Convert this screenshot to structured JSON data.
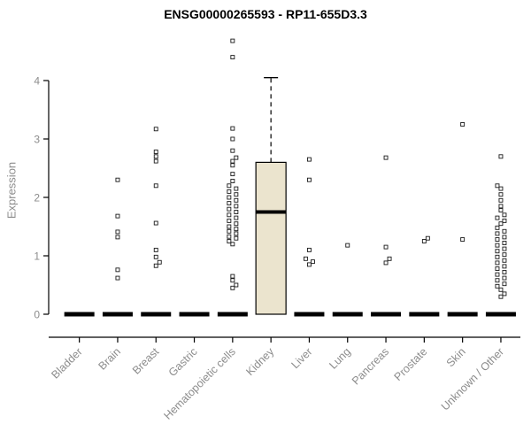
{
  "chart_data": {
    "type": "boxplot",
    "title": "ENSG00000265593 - RP11-655D3.3",
    "ylabel": "Expression",
    "ylim": [
      0,
      4.8
    ],
    "yticks": [
      0,
      1,
      2,
      3,
      4
    ],
    "grid": false,
    "legend": "none",
    "categories": [
      "Bladder",
      "Brain",
      "Breast",
      "Gastric",
      "Hematopoietic cells",
      "Kidney",
      "Liver",
      "Lung",
      "Pancreas",
      "Prostate",
      "Skin",
      "Unknown / Other"
    ],
    "boxes": [
      {
        "category": "Bladder",
        "q1": 0,
        "median": 0,
        "q3": 0,
        "whisker_low": 0,
        "whisker_high": 0,
        "outliers": []
      },
      {
        "category": "Brain",
        "q1": 0,
        "median": 0,
        "q3": 0,
        "whisker_low": 0,
        "whisker_high": 0,
        "outliers": [
          0.62,
          0.76,
          1.32,
          1.41,
          1.68,
          2.3
        ]
      },
      {
        "category": "Breast",
        "q1": 0,
        "median": 0,
        "q3": 0,
        "whisker_low": 0,
        "whisker_high": 0,
        "outliers": [
          0.83,
          0.89,
          0.98,
          1.1,
          1.56,
          2.2,
          2.62,
          2.7,
          2.78,
          3.17
        ]
      },
      {
        "category": "Gastric",
        "q1": 0,
        "median": 0,
        "q3": 0,
        "whisker_low": 0,
        "whisker_high": 0,
        "outliers": []
      },
      {
        "category": "Hematopoietic cells",
        "q1": 0,
        "median": 0,
        "q3": 0,
        "whisker_low": 0,
        "whisker_high": 0,
        "outliers": [
          0.45,
          0.5,
          0.58,
          0.65,
          1.2,
          1.25,
          1.3,
          1.33,
          1.38,
          1.42,
          1.46,
          1.5,
          1.55,
          1.6,
          1.65,
          1.7,
          1.75,
          1.8,
          1.85,
          1.9,
          1.95,
          2.0,
          2.05,
          2.1,
          2.15,
          2.2,
          2.28,
          2.4,
          2.55,
          2.62,
          2.68,
          2.8,
          3.0,
          3.18,
          4.4,
          4.68
        ]
      },
      {
        "category": "Kidney",
        "q1": 0,
        "median": 1.75,
        "q3": 2.6,
        "whisker_low": 0,
        "whisker_high": 4.05,
        "outliers": []
      },
      {
        "category": "Liver",
        "q1": 0,
        "median": 0,
        "q3": 0,
        "whisker_low": 0,
        "whisker_high": 0,
        "outliers": [
          0.85,
          0.9,
          0.95,
          1.1,
          2.3,
          2.65
        ]
      },
      {
        "category": "Lung",
        "q1": 0,
        "median": 0,
        "q3": 0,
        "whisker_low": 0,
        "whisker_high": 0,
        "outliers": [
          1.18
        ]
      },
      {
        "category": "Pancreas",
        "q1": 0,
        "median": 0,
        "q3": 0,
        "whisker_low": 0,
        "whisker_high": 0,
        "outliers": [
          0.88,
          0.95,
          1.15,
          2.68
        ]
      },
      {
        "category": "Prostate",
        "q1": 0,
        "median": 0,
        "q3": 0,
        "whisker_low": 0,
        "whisker_high": 0,
        "outliers": [
          1.25,
          1.3
        ]
      },
      {
        "category": "Skin",
        "q1": 0,
        "median": 0,
        "q3": 0,
        "whisker_low": 0,
        "whisker_high": 0,
        "outliers": [
          1.28,
          3.25
        ]
      },
      {
        "category": "Unknown / Other",
        "q1": 0,
        "median": 0,
        "q3": 0,
        "whisker_low": 0,
        "whisker_high": 0,
        "outliers": [
          0.3,
          0.35,
          0.42,
          0.48,
          0.52,
          0.58,
          0.62,
          0.68,
          0.72,
          0.78,
          0.82,
          0.88,
          0.92,
          0.98,
          1.02,
          1.08,
          1.12,
          1.18,
          1.22,
          1.28,
          1.32,
          1.38,
          1.42,
          1.48,
          1.55,
          1.6,
          1.65,
          1.7,
          1.78,
          1.85,
          1.95,
          2.05,
          2.15,
          2.2,
          2.7
        ]
      }
    ],
    "colors": {
      "box_fill": "#EBE4CE",
      "box_stroke": "#000000",
      "median_line": "#000000",
      "axis": "#000000",
      "axis_label": "#8c8c8c",
      "tick_label": "#8c8c8c"
    }
  }
}
